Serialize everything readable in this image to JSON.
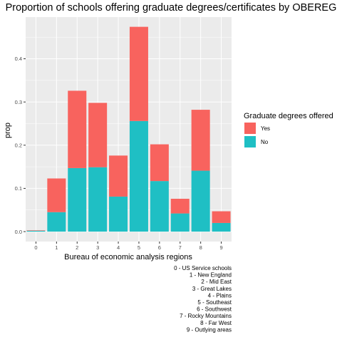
{
  "chart_data": {
    "type": "bar",
    "stacked": true,
    "title": "Proportion of schools offering graduate degrees/certificates by OBEREG",
    "xlabel": "Bureau of economic analysis regions",
    "ylabel": "prop",
    "categories": [
      "0",
      "1",
      "2",
      "3",
      "4",
      "5",
      "6",
      "7",
      "8",
      "9"
    ],
    "y_ticks": [
      "0.0",
      "0.1",
      "0.2",
      "0.3",
      "0.4"
    ],
    "ylim": [
      -0.023,
      0.4965
    ],
    "grid": true,
    "legend": {
      "title": "Graduate degrees offered",
      "position": "right"
    },
    "series": [
      {
        "name": "No",
        "color": "#1fbfc4",
        "values": [
          0.002,
          0.045,
          0.147,
          0.149,
          0.081,
          0.256,
          0.117,
          0.042,
          0.141,
          0.02
        ]
      },
      {
        "name": "Yes",
        "color": "#f8635e",
        "values": [
          0.001,
          0.078,
          0.179,
          0.149,
          0.095,
          0.218,
          0.085,
          0.034,
          0.141,
          0.027
        ]
      }
    ],
    "legend_order": [
      "Yes",
      "No"
    ],
    "caption": [
      "0 - US Service schools",
      "1 - New England",
      "2 - Mid East",
      "3 - Great Lakes",
      "4 - Plains",
      "5 - Southeast",
      "6 - Southwest",
      "7 - Rocky Mountains",
      "8 - Far West",
      "9 - Outlying areas"
    ]
  }
}
